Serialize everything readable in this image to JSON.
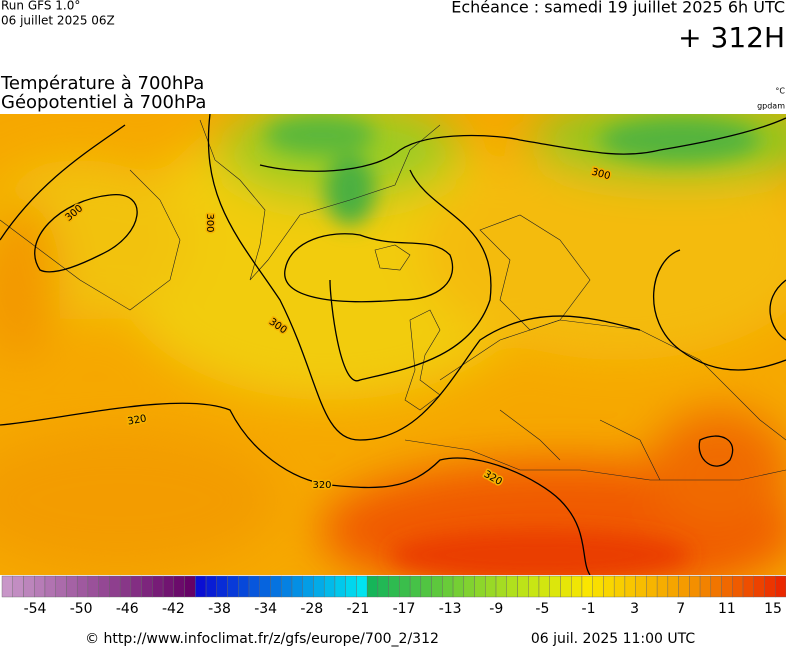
{
  "header": {
    "run": "Run GFS 1.0°",
    "date": "06 juillet 2025 06Z",
    "echeance": "Echéance : samedi 19 juillet 2025 6h UTC",
    "lead": "+ 312H"
  },
  "title": {
    "line1": "Température à 700hPa",
    "line2": "Géopotentiel à 700hPa",
    "unit_temp": "°C",
    "unit_geo": "gpdam"
  },
  "contour_labels": [
    300,
    300,
    300,
    300,
    320,
    320,
    320
  ],
  "colorbar_labels": [
    -54,
    -50,
    -46,
    -42,
    -38,
    -34,
    -28,
    -21,
    -17,
    -13,
    -9,
    -5,
    -1,
    3,
    7,
    11,
    15
  ],
  "footer": {
    "source": "© http://www.infoclimat.fr/z/gfs/europe/700_2/312",
    "updated": "06 juil. 2025 11:00 UTC"
  }
}
